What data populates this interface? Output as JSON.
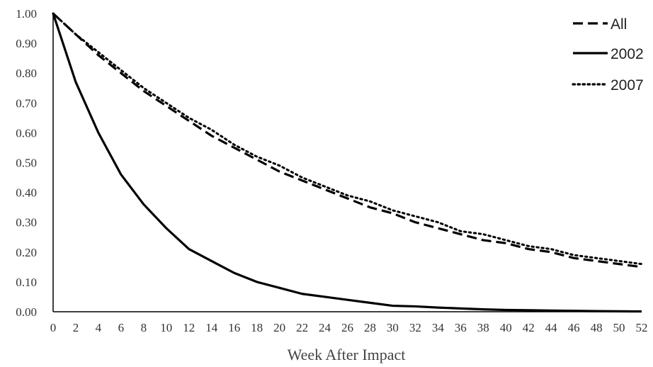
{
  "chart_data": {
    "type": "line",
    "title": "",
    "xlabel": "Week After Impact",
    "ylabel": "",
    "xlim": [
      0,
      52
    ],
    "ylim": [
      0,
      1
    ],
    "x_ticks": [
      "0",
      "2",
      "4",
      "6",
      "8",
      "10",
      "12",
      "14",
      "16",
      "18",
      "20",
      "22",
      "24",
      "26",
      "28",
      "30",
      "32",
      "34",
      "36",
      "38",
      "40",
      "42",
      "44",
      "46",
      "48",
      "50",
      "52"
    ],
    "y_ticks": [
      "0.00",
      "0.10",
      "0.20",
      "0.30",
      "0.40",
      "0.50",
      "0.60",
      "0.70",
      "0.80",
      "0.90",
      "1.00"
    ],
    "grid": false,
    "legend_position": "top-right",
    "x": [
      0,
      2,
      4,
      6,
      8,
      10,
      12,
      14,
      16,
      18,
      20,
      22,
      24,
      26,
      28,
      30,
      32,
      34,
      36,
      38,
      40,
      42,
      44,
      46,
      48,
      50,
      52
    ],
    "series": [
      {
        "name": "All",
        "style": "dashed",
        "color": "#000000",
        "values": [
          1.0,
          0.93,
          0.86,
          0.8,
          0.74,
          0.69,
          0.64,
          0.59,
          0.55,
          0.51,
          0.47,
          0.44,
          0.41,
          0.38,
          0.35,
          0.33,
          0.3,
          0.28,
          0.26,
          0.24,
          0.23,
          0.21,
          0.2,
          0.18,
          0.17,
          0.16,
          0.15
        ]
      },
      {
        "name": "2002",
        "style": "solid",
        "color": "#000000",
        "values": [
          1.0,
          0.77,
          0.6,
          0.46,
          0.36,
          0.28,
          0.21,
          0.17,
          0.13,
          0.1,
          0.08,
          0.06,
          0.05,
          0.04,
          0.03,
          0.02,
          0.018,
          0.014,
          0.011,
          0.008,
          0.006,
          0.005,
          0.004,
          0.003,
          0.002,
          0.0015,
          0.001
        ]
      },
      {
        "name": "2007",
        "style": "dotted",
        "color": "#000000",
        "values": [
          1.0,
          0.93,
          0.87,
          0.81,
          0.75,
          0.7,
          0.65,
          0.61,
          0.56,
          0.52,
          0.49,
          0.45,
          0.42,
          0.39,
          0.37,
          0.34,
          0.32,
          0.3,
          0.27,
          0.26,
          0.24,
          0.22,
          0.21,
          0.19,
          0.18,
          0.17,
          0.16
        ]
      }
    ]
  }
}
